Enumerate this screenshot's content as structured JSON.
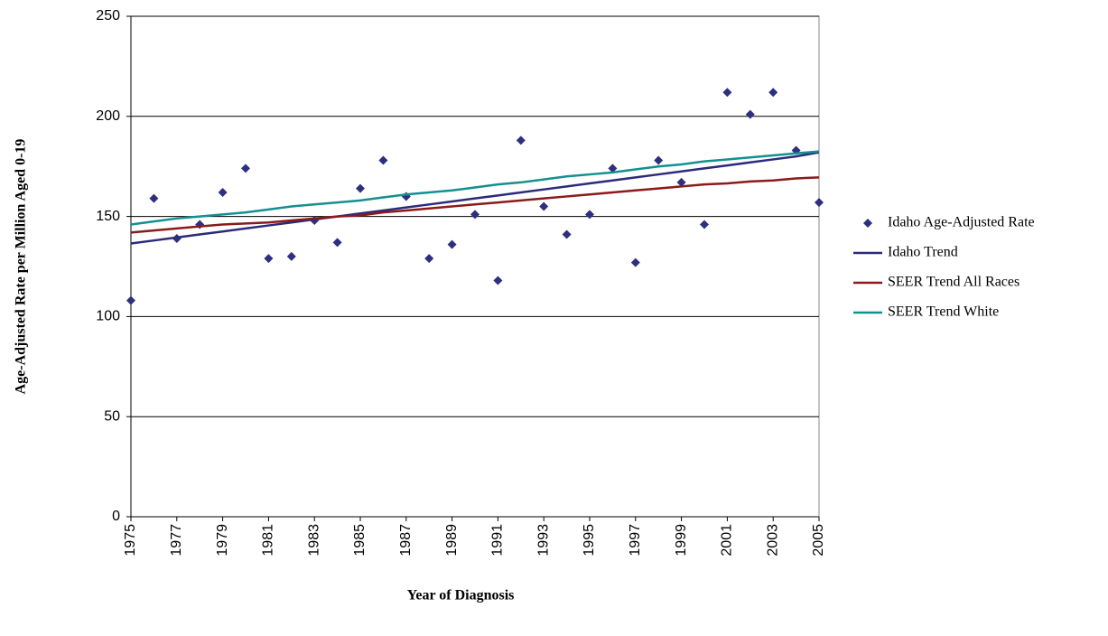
{
  "chart_data": {
    "type": "scatter-line",
    "x_label": "Year of Diagnosis",
    "y_label": "Age-Adjusted Rate per Million Aged 0-19",
    "x": [
      1975,
      1976,
      1977,
      1978,
      1979,
      1980,
      1981,
      1982,
      1983,
      1984,
      1985,
      1986,
      1987,
      1988,
      1989,
      1990,
      1991,
      1992,
      1993,
      1994,
      1995,
      1996,
      1997,
      1998,
      1999,
      2000,
      2001,
      2002,
      2003,
      2004,
      2005
    ],
    "xlim": [
      1975,
      2005
    ],
    "xticks": [
      1975,
      1977,
      1979,
      1981,
      1983,
      1985,
      1987,
      1989,
      1991,
      1993,
      1995,
      1997,
      1999,
      2001,
      2003,
      2005
    ],
    "ylim": [
      0,
      250
    ],
    "yticks": [
      0,
      50,
      100,
      150,
      200,
      250
    ],
    "grid": true,
    "legend": "right",
    "series": [
      {
        "name": "Idaho Age-Adjusted Rate",
        "color": "#2e2f7f",
        "style": "markers",
        "values": [
          108,
          159,
          139,
          146,
          162,
          174,
          129,
          130,
          148,
          137,
          164,
          178,
          160,
          129,
          136,
          151,
          118,
          188,
          155,
          141,
          151,
          174,
          127,
          178,
          167,
          146,
          212,
          201,
          212,
          183,
          157
        ]
      },
      {
        "name": "Idaho Trend",
        "color": "#2b2b7a",
        "style": "line",
        "values": [
          136.5,
          138,
          139.5,
          141,
          142.5,
          144,
          145.5,
          147,
          148.5,
          150,
          151.5,
          153,
          154.5,
          156,
          157.5,
          159,
          160.5,
          162,
          163.5,
          165,
          166.5,
          168,
          169.5,
          171,
          172.5,
          174,
          175.5,
          177,
          178.5,
          180,
          182
        ]
      },
      {
        "name": "SEER Trend All Races",
        "color": "#8b1a1a",
        "style": "line",
        "values": [
          142,
          143,
          144,
          145,
          146,
          146.5,
          147,
          148,
          149,
          150,
          150.5,
          152,
          153,
          154,
          155,
          156,
          157,
          158,
          159,
          160,
          161,
          162,
          163,
          164,
          165,
          166,
          166.5,
          167.5,
          168,
          169,
          169.5
        ]
      },
      {
        "name": "SEER Trend White",
        "color": "#13908f",
        "style": "line",
        "values": [
          146,
          147.5,
          149,
          150,
          151,
          152,
          153.5,
          155,
          156,
          157,
          158,
          159.5,
          161,
          162,
          163,
          164.5,
          166,
          167,
          168.5,
          170,
          171,
          172,
          173.5,
          175,
          176,
          177.5,
          178.5,
          179.5,
          180.5,
          181.5,
          182.5
        ]
      }
    ]
  }
}
